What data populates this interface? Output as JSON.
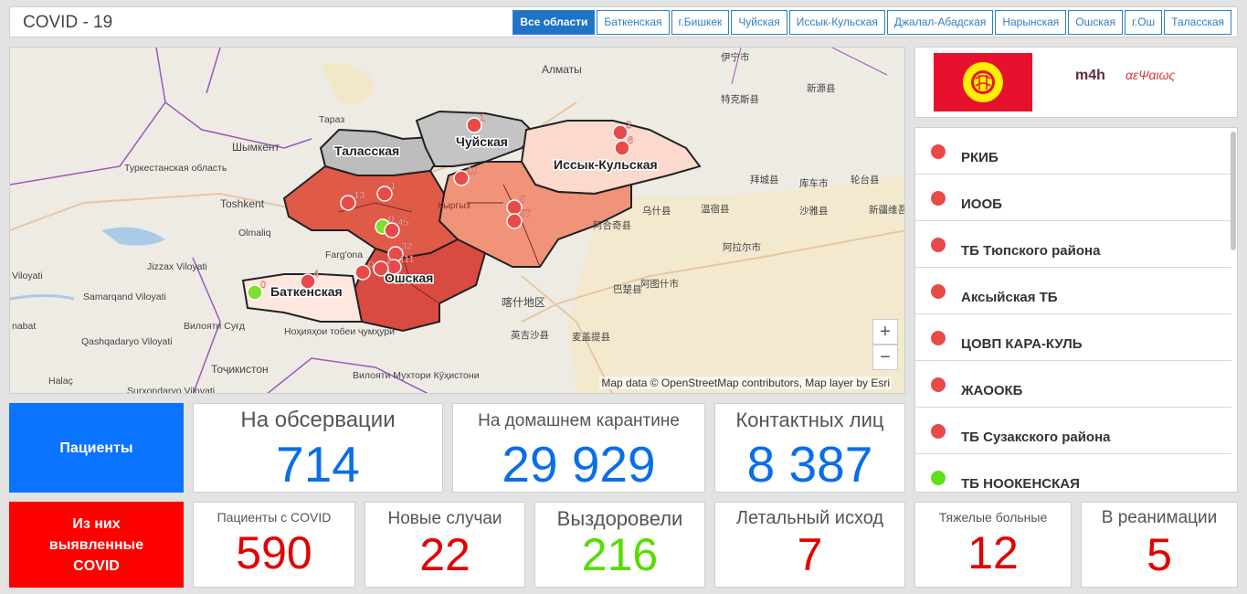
{
  "header": {
    "title": "COVID - 19",
    "tabs": [
      "Все области",
      "Баткенская",
      "г.Бишкек",
      "Чуйская",
      "Иссык-Кульская",
      "Джалал-Абадская",
      "Нарынская",
      "Ошская",
      "г.Ош",
      "Таласская"
    ],
    "active_tab": "Все области"
  },
  "map": {
    "region_labels": [
      "Таласская",
      "Чуйская",
      "Иссык-Кульская",
      "Баткенская",
      "Ошская"
    ],
    "place_labels": [
      "伊宁市",
      "特克斯县",
      "新源县",
      "Алматы",
      "Тараз",
      "Шымкент",
      "Туркестанская область",
      "Toshkent",
      "Olmaliq",
      "Farg'ona",
      "Jizzax Viloyati",
      "Samarqand Viloyati",
      "Viloyati",
      "Qashqadaryo Viloyati",
      "nabat",
      "Halaç",
      "Surxondaryo Viloyati",
      "Вилояти Суғд",
      "Ноҳияҳои тобеи ҷумҳурӣ",
      "Тоҷикистон",
      "Вилояти Мухтори Кӯҳистони",
      "拜城县",
      "库车市",
      "轮台县",
      "乌什县",
      "温宿县",
      "沙雅县",
      "新疆维吾",
      "阿合奇县",
      "阿拉尔市",
      "巴楚县",
      "阿图什市",
      "喀什地区",
      "英吉沙县",
      "麦盖提县",
      "Кыргыз"
    ],
    "markers": [
      {
        "label": "1",
        "color": "#e84a4a"
      },
      {
        "label": "2",
        "color": "#e84a4a"
      },
      {
        "label": "6",
        "color": "#e84a4a"
      },
      {
        "label": "10",
        "color": "#e84a4a"
      },
      {
        "label": "13",
        "color": "#e84a4a"
      },
      {
        "label": "1",
        "color": "#e84a4a"
      },
      {
        "label": "5",
        "color": "#e84a4a"
      },
      {
        "label": "57",
        "color": "#e84a4a"
      },
      {
        "label": "0",
        "color": "#7ee02a"
      },
      {
        "label": "45",
        "color": "#e84a4a"
      },
      {
        "label": "32",
        "color": "#e84a4a"
      },
      {
        "label": "111",
        "color": "#e84a4a"
      },
      {
        "label": "2",
        "color": "#e84a4a"
      },
      {
        "label": "0",
        "color": "#e84a4a"
      },
      {
        "label": "4",
        "color": "#e84a4a"
      },
      {
        "label": "0",
        "color": "#7ee02a"
      }
    ],
    "zoom_in": "+",
    "zoom_out": "−",
    "attribution": "Map data © OpenStreetMap contributors, Map layer by Esri"
  },
  "logos": {
    "m4h": "m4h",
    "partner": "αεΨαιως"
  },
  "facilities": [
    {
      "name": "РКИБ",
      "status_color": "#e84a4a"
    },
    {
      "name": "ИООБ",
      "status_color": "#e84a4a"
    },
    {
      "name": "ТБ Тюпского района",
      "status_color": "#e84a4a"
    },
    {
      "name": "Аксыйская ТБ",
      "status_color": "#e84a4a"
    },
    {
      "name": "ЦОВП КАРА-КУЛЬ",
      "status_color": "#e84a4a"
    },
    {
      "name": "ЖАООКБ",
      "status_color": "#e84a4a"
    },
    {
      "name": "ТБ Сузакского района",
      "status_color": "#e84a4a"
    },
    {
      "name": "ТБ НООКЕНСКАЯ",
      "status_color": "#5fe01a"
    }
  ],
  "patients": {
    "label": "Пациенты",
    "label_color": "#0a73ff",
    "observation": {
      "title": "На обсервации",
      "value": "714"
    },
    "home_quarantine": {
      "title": "На домашнем карантине",
      "value": "29 929"
    },
    "contacts": {
      "title": "Контактных лиц",
      "value": "8 387"
    },
    "value_color": "#0a6ee8"
  },
  "covid": {
    "label_lines": [
      "Из них",
      "выявленные",
      "COVID"
    ],
    "label_color": "#ff0000",
    "patients_covid": {
      "title": "Пациенты с COVID",
      "value": "590"
    },
    "new_cases": {
      "title": "Новые случаи",
      "value": "22"
    },
    "recovered": {
      "title": "Выздоровели",
      "value": "216"
    },
    "deaths": {
      "title": "Летальный исход",
      "value": "7"
    },
    "severe": {
      "title": "Тяжелые больные",
      "value": "12"
    },
    "icu": {
      "title": "В реанимации",
      "value": "5"
    },
    "red_color": "#e30000",
    "green_color": "#55dd00"
  }
}
